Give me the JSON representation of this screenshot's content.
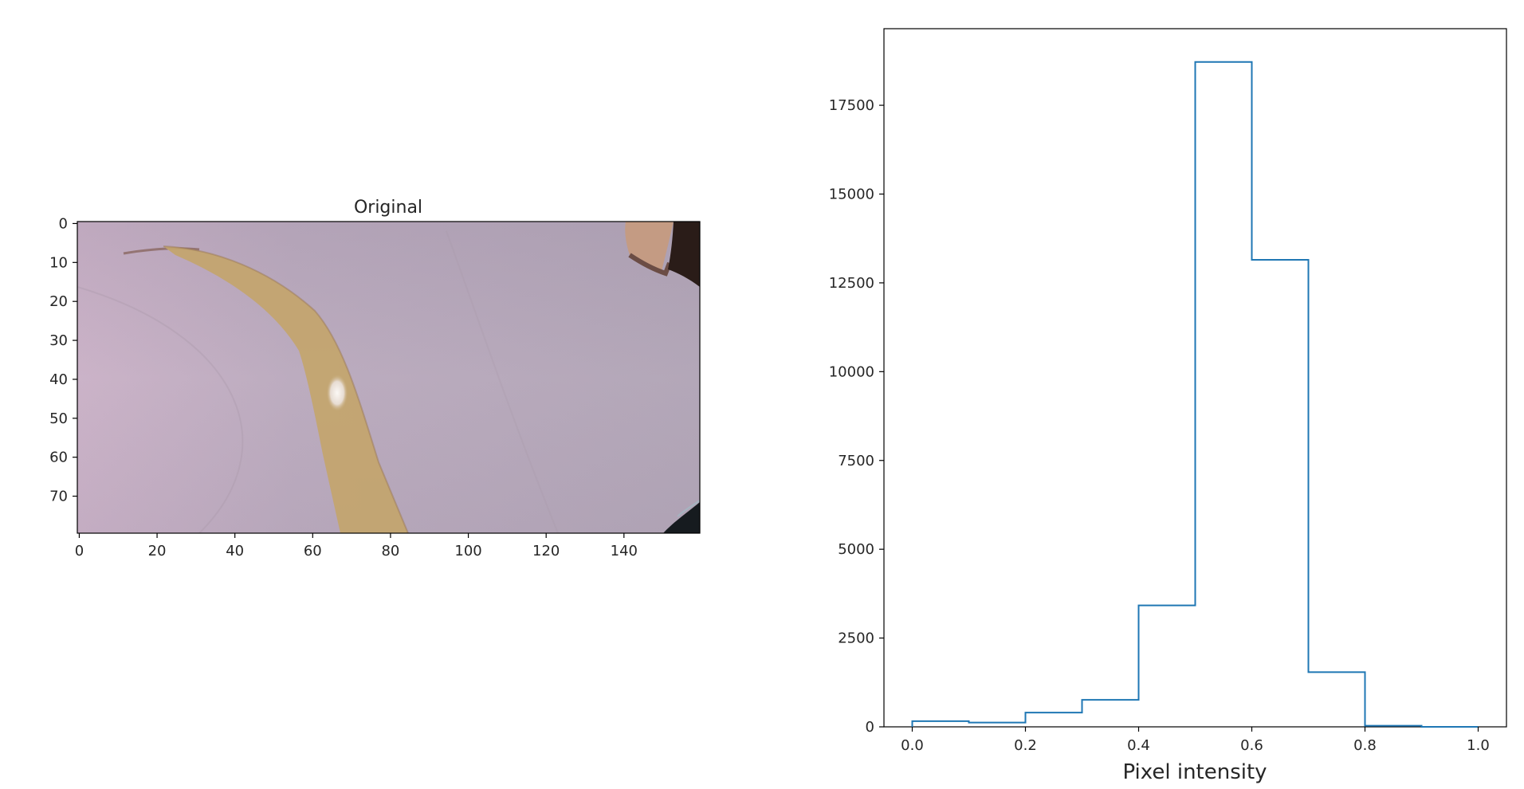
{
  "chart_data": [
    {
      "type": "image",
      "title": "Original",
      "image_content": "camera frame of a light grey-lilac floor with a curved yellow-tan tape line running from the upper left toward the bottom center, a small specular highlight on the tape, a brown object in the top-right corner and a dark corner at the bottom right",
      "xlabel": "",
      "ylabel": "",
      "x_ticks": [
        "0",
        "20",
        "40",
        "60",
        "80",
        "100",
        "120",
        "140"
      ],
      "y_ticks": [
        "0",
        "10",
        "20",
        "30",
        "40",
        "50",
        "60",
        "70"
      ],
      "xlim": [
        -0.5,
        159.5
      ],
      "ylim": [
        79.5,
        -0.5
      ],
      "grid": false,
      "colors": {
        "floor": "#b5a8b8",
        "floor_left": "#cbb3c8",
        "tape": "#c0a269",
        "highlight": "#f7f2ee",
        "corner_object": "#c49b83",
        "corner_dark": "#1a1415"
      }
    },
    {
      "type": "histogram",
      "histtype": "step",
      "title": "",
      "xlabel": "Pixel intensity",
      "ylabel": "",
      "bin_edges": [
        0.0,
        0.1,
        0.2,
        0.3,
        0.4,
        0.5,
        0.6,
        0.7,
        0.8,
        0.9,
        1.0
      ],
      "values": [
        160,
        120,
        400,
        760,
        3420,
        18720,
        13150,
        1540,
        30,
        0
      ],
      "xlim": [
        -0.05,
        1.05
      ],
      "ylim": [
        0,
        19656
      ],
      "x_ticks": [
        "0.0",
        "0.2",
        "0.4",
        "0.6",
        "0.8",
        "1.0"
      ],
      "y_ticks": [
        "0",
        "2500",
        "5000",
        "7500",
        "10000",
        "12500",
        "15000",
        "17500"
      ],
      "grid": false,
      "color": "#1f77b4"
    }
  ]
}
